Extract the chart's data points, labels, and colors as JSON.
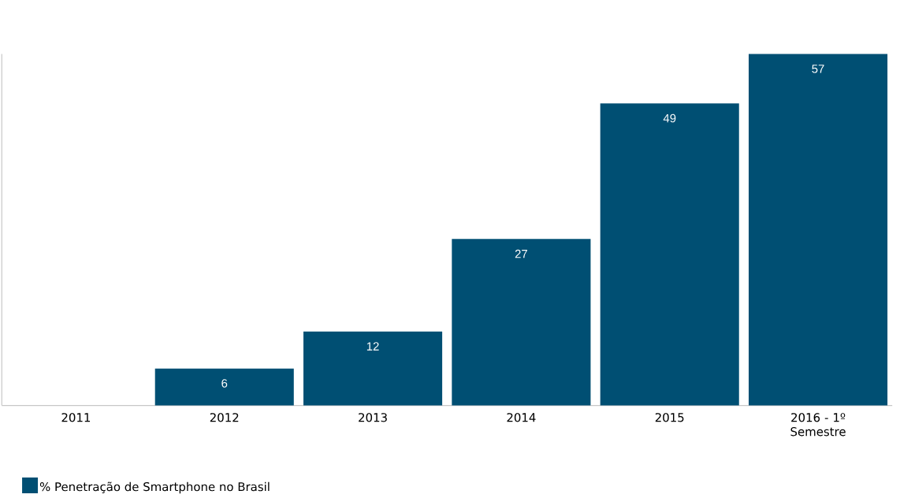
{
  "chart_data": {
    "type": "bar",
    "categories": [
      "2011",
      "2012",
      "2013",
      "2014",
      "2015",
      "2016 - 1º Semestre"
    ],
    "series": [
      {
        "name": "% Penetração de Smartphone no Brasil",
        "color": "#004f73",
        "values": [
          null,
          6,
          12,
          27,
          49,
          57
        ]
      }
    ],
    "data_labels": true,
    "legend": "bottom left"
  }
}
